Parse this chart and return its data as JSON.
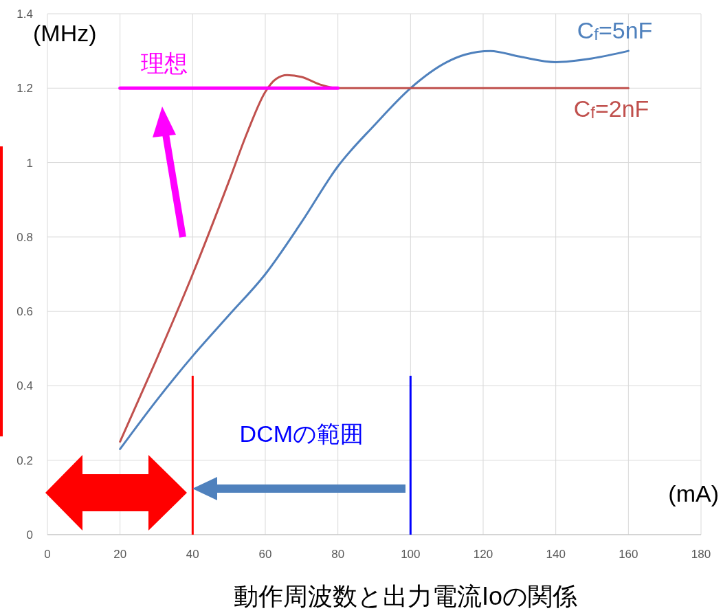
{
  "chart_data": {
    "type": "line",
    "title": "動作周波数と出力電流Ioの関係",
    "xlabel": "(mA)",
    "ylabel": "(MHz)",
    "xlim": [
      0,
      180
    ],
    "xticks": [
      0,
      20,
      40,
      60,
      80,
      100,
      120,
      140,
      160,
      180
    ],
    "ylim": [
      0,
      1.4
    ],
    "yticks": [
      0,
      0.2,
      0.4,
      0.6,
      0.8,
      1,
      1.2,
      1.4
    ],
    "grid": true,
    "series": [
      {
        "name": "C$_{f}$=5nF",
        "color": "#4f81bd",
        "x": [
          20,
          30,
          40,
          50,
          60,
          70,
          80,
          90,
          100,
          110,
          115,
          122,
          130,
          140,
          150,
          160
        ],
        "values": [
          0.23,
          0.36,
          0.48,
          0.59,
          0.7,
          0.84,
          0.99,
          1.1,
          1.2,
          1.27,
          1.29,
          1.3,
          1.285,
          1.27,
          1.28,
          1.3
        ]
      },
      {
        "name": "C$_{f}$=2nF",
        "color": "#c0504d",
        "x": [
          20,
          30,
          40,
          50,
          55,
          60,
          63,
          66,
          70,
          75,
          80,
          100,
          120,
          140,
          160
        ],
        "values": [
          0.25,
          0.47,
          0.7,
          0.95,
          1.08,
          1.19,
          1.225,
          1.235,
          1.23,
          1.21,
          1.2,
          1.2,
          1.2,
          1.2,
          1.2
        ]
      },
      {
        "name": "理想",
        "color": "#ff00ff",
        "x": [
          20,
          80
        ],
        "values": [
          1.2,
          1.2
        ]
      }
    ],
    "ref_lines": [
      {
        "axis": "x",
        "value": 40,
        "color": "#ff0000"
      },
      {
        "axis": "x",
        "value": 100,
        "color": "#0000ff"
      }
    ],
    "annotations": [
      "DCMの範囲"
    ]
  }
}
